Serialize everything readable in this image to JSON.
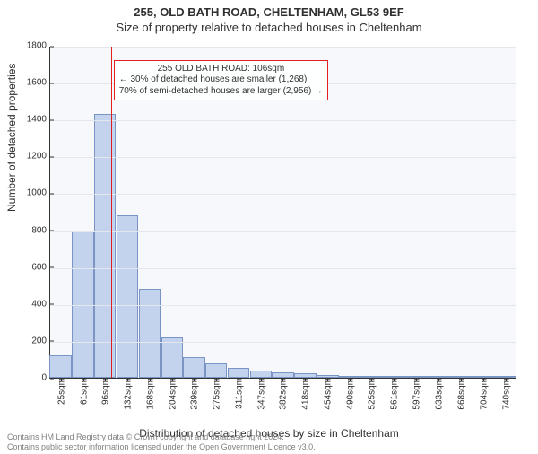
{
  "title_line1": "255, OLD BATH ROAD, CHELTENHAM, GL53 9EF",
  "title_line2": "Size of property relative to detached houses in Cheltenham",
  "ylabel": "Number of detached properties",
  "xlabel": "Distribution of detached houses by size in Cheltenham",
  "chart": {
    "type": "histogram",
    "plot_bg": "#f6f8fb",
    "grid_color": "#e4e7ec",
    "axis_color": "#333333",
    "bar_fill": "#c3d3ee",
    "bar_border": "#7a94c4",
    "ref_line_color": "#e02020",
    "ylim": [
      0,
      1800
    ],
    "ytick_step": 200,
    "xticks_sqm": [
      25,
      61,
      96,
      132,
      168,
      204,
      239,
      275,
      311,
      347,
      382,
      418,
      454,
      490,
      525,
      561,
      597,
      633,
      668,
      704,
      740
    ],
    "xrange_sqm": [
      8,
      758
    ],
    "bar_width_sqm": 35.7,
    "bars": [
      {
        "x_sqm": 25,
        "count": 120
      },
      {
        "x_sqm": 61,
        "count": 800
      },
      {
        "x_sqm": 96,
        "count": 1430
      },
      {
        "x_sqm": 132,
        "count": 880
      },
      {
        "x_sqm": 168,
        "count": 480
      },
      {
        "x_sqm": 204,
        "count": 220
      },
      {
        "x_sqm": 239,
        "count": 110
      },
      {
        "x_sqm": 275,
        "count": 80
      },
      {
        "x_sqm": 311,
        "count": 55
      },
      {
        "x_sqm": 347,
        "count": 40
      },
      {
        "x_sqm": 382,
        "count": 30
      },
      {
        "x_sqm": 418,
        "count": 22
      },
      {
        "x_sqm": 454,
        "count": 15
      },
      {
        "x_sqm": 490,
        "count": 10
      },
      {
        "x_sqm": 525,
        "count": 7
      },
      {
        "x_sqm": 561,
        "count": 5
      },
      {
        "x_sqm": 597,
        "count": 4
      },
      {
        "x_sqm": 633,
        "count": 3
      },
      {
        "x_sqm": 668,
        "count": 2
      },
      {
        "x_sqm": 704,
        "count": 2
      },
      {
        "x_sqm": 740,
        "count": 1
      }
    ],
    "reference_sqm": 106,
    "annotation": {
      "line1": "255 OLD BATH ROAD: 106sqm",
      "line2": "← 30% of detached houses are smaller (1,268)",
      "line3": "70% of semi-detached houses are larger (2,956) →",
      "box_border": "#e02020",
      "top_frac_from_top": 0.04,
      "left_sqm": 110
    }
  },
  "footer_line1": "Contains HM Land Registry data © Crown copyright and database right 2024.",
  "footer_line2": "Contains public sector information licensed under the Open Government Licence v3.0.",
  "label_fontsize": 12,
  "tick_fontsize": 10,
  "title_fontsize": 13,
  "footer_color": "#808080"
}
